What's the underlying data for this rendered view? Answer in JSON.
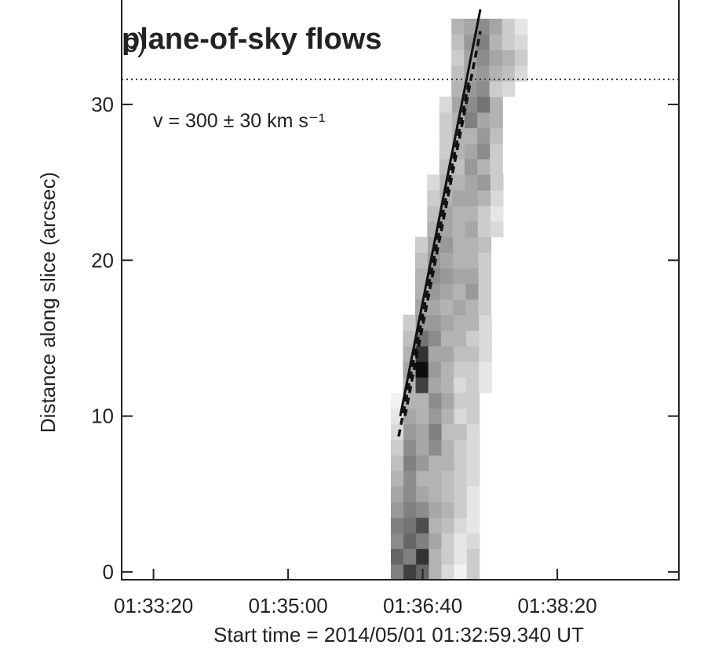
{
  "chart_data": {
    "type": "heatmap",
    "title": "plane-of-sky flows",
    "title_color": "#cc2200",
    "panel_label": "c)",
    "annotation": "v = 300 ± 30 km s⁻¹",
    "y_label": "Distance along slice (arcsec)",
    "x_label": "Start time = 2014/05/01 01:32:59.340 UT",
    "xlim": [
      -3,
      411
    ],
    "ylim": [
      -0.5,
      36.7
    ],
    "xticks": [
      {
        "value": 20.66,
        "label": "01:33:20"
      },
      {
        "value": 120.66,
        "label": "01:35:00"
      },
      {
        "value": 220.66,
        "label": "01:36:40"
      },
      {
        "value": 320.66,
        "label": "01:38:20"
      }
    ],
    "yticks": [
      0,
      10,
      20,
      30
    ],
    "cell_width": 9.4,
    "cell_height": 1,
    "rows": [
      {
        "y": 0,
        "x0": 197,
        "values": [
          0.5,
          0.75,
          0.6,
          0.3,
          0.15,
          0.05,
          0.2
        ]
      },
      {
        "y": 1,
        "x0": 197,
        "values": [
          0.6,
          0.5,
          0.8,
          0.3,
          0.2,
          0.1,
          0.2
        ]
      },
      {
        "y": 2,
        "x0": 197,
        "values": [
          0.45,
          0.6,
          0.5,
          0.35,
          0.2,
          0.1,
          0.15
        ]
      },
      {
        "y": 3,
        "x0": 197,
        "values": [
          0.5,
          0.55,
          0.7,
          0.3,
          0.25,
          0.15,
          0.1
        ]
      },
      {
        "y": 4,
        "x0": 197,
        "values": [
          0.4,
          0.5,
          0.45,
          0.35,
          0.3,
          0.2,
          0.1
        ]
      },
      {
        "y": 5,
        "x0": 197,
        "values": [
          0.35,
          0.45,
          0.35,
          0.3,
          0.25,
          0.2,
          0.1
        ]
      },
      {
        "y": 6,
        "x0": 197,
        "values": [
          0.3,
          0.45,
          0.3,
          0.3,
          0.25,
          0.2,
          0.15
        ]
      },
      {
        "y": 7,
        "x0": 197,
        "values": [
          0.25,
          0.5,
          0.4,
          0.3,
          0.3,
          0.2,
          0.15
        ]
      },
      {
        "y": 8,
        "x0": 197,
        "values": [
          0.2,
          0.45,
          0.35,
          0.45,
          0.3,
          0.2,
          0.15
        ]
      },
      {
        "y": 9,
        "x0": 197,
        "values": [
          0.15,
          0.4,
          0.35,
          0.5,
          0.25,
          0.25,
          0.15
        ]
      },
      {
        "y": 10,
        "x0": 197,
        "values": [
          0.1,
          0.35,
          0.3,
          0.4,
          0.3,
          0.15,
          0.2
        ]
      },
      {
        "y": 11,
        "x0": 197,
        "values": [
          0.05,
          0.3,
          0.3,
          0.45,
          0.35,
          0.2,
          0.2
        ]
      },
      {
        "y": 12,
        "x0": 206,
        "values": [
          0.3,
          0.75,
          0.35,
          0.3,
          0.15,
          0.2,
          0.1
        ]
      },
      {
        "y": 13,
        "x0": 206,
        "values": [
          0.35,
          0.95,
          0.4,
          0.3,
          0.2,
          0.2,
          0.1
        ]
      },
      {
        "y": 14,
        "x0": 206,
        "values": [
          0.3,
          0.8,
          0.35,
          0.35,
          0.25,
          0.25,
          0.15
        ]
      },
      {
        "y": 15,
        "x0": 206,
        "values": [
          0.25,
          0.55,
          0.45,
          0.3,
          0.3,
          0.2,
          0.15
        ]
      },
      {
        "y": 16,
        "x0": 206,
        "values": [
          0.2,
          0.4,
          0.4,
          0.35,
          0.3,
          0.3,
          0.15
        ]
      },
      {
        "y": 17,
        "x0": 215,
        "values": [
          0.35,
          0.35,
          0.3,
          0.35,
          0.3,
          0.2
        ]
      },
      {
        "y": 18,
        "x0": 215,
        "values": [
          0.3,
          0.4,
          0.35,
          0.3,
          0.4,
          0.2
        ]
      },
      {
        "y": 19,
        "x0": 215,
        "values": [
          0.3,
          0.45,
          0.4,
          0.35,
          0.35,
          0.2
        ]
      },
      {
        "y": 20,
        "x0": 215,
        "values": [
          0.25,
          0.4,
          0.35,
          0.3,
          0.3,
          0.2
        ]
      },
      {
        "y": 21,
        "x0": 215,
        "values": [
          0.2,
          0.35,
          0.4,
          0.3,
          0.3,
          0.25
        ]
      },
      {
        "y": 22,
        "x0": 224,
        "values": [
          0.3,
          0.35,
          0.3,
          0.35,
          0.2,
          0.15
        ]
      },
      {
        "y": 23,
        "x0": 224,
        "values": [
          0.25,
          0.35,
          0.3,
          0.3,
          0.2,
          0.1
        ]
      },
      {
        "y": 24,
        "x0": 224,
        "values": [
          0.2,
          0.3,
          0.35,
          0.35,
          0.3,
          0.15
        ]
      },
      {
        "y": 25,
        "x0": 224,
        "values": [
          0.15,
          0.3,
          0.3,
          0.35,
          0.4,
          0.2
        ]
      },
      {
        "y": 26,
        "x0": 233,
        "values": [
          0.25,
          0.25,
          0.4,
          0.3,
          0.2
        ]
      },
      {
        "y": 27,
        "x0": 233,
        "values": [
          0.2,
          0.3,
          0.35,
          0.45,
          0.2
        ]
      },
      {
        "y": 28,
        "x0": 233,
        "values": [
          0.2,
          0.3,
          0.3,
          0.4,
          0.25
        ]
      },
      {
        "y": 29,
        "x0": 233,
        "values": [
          0.2,
          0.3,
          0.5,
          0.35,
          0.3
        ]
      },
      {
        "y": 30,
        "x0": 233,
        "values": [
          0.15,
          0.35,
          0.45,
          0.55,
          0.3
        ]
      },
      {
        "y": 31,
        "x0": 242,
        "values": [
          0.3,
          0.4,
          0.45,
          0.2,
          0.15
        ]
      },
      {
        "y": 32,
        "x0": 242,
        "values": [
          0.25,
          0.35,
          0.4,
          0.3,
          0.25,
          0.15
        ]
      },
      {
        "y": 33,
        "x0": 242,
        "values": [
          0.2,
          0.35,
          0.45,
          0.35,
          0.3,
          0.2
        ]
      },
      {
        "y": 34,
        "x0": 242,
        "values": [
          0.25,
          0.4,
          0.5,
          0.3,
          0.2,
          0.15
        ]
      },
      {
        "y": 35,
        "x0": 242,
        "values": [
          0.3,
          0.35,
          0.45,
          0.35,
          0.2,
          0.1
        ]
      }
    ],
    "lines": [
      {
        "style": "solid",
        "x": [
          204.0,
          263.5
        ],
        "y": [
          10,
          36.1
        ]
      },
      {
        "style": "dashed",
        "x": [
          202.8,
          255.3
        ],
        "y": [
          8.7,
          31.6
        ]
      },
      {
        "style": "dashed",
        "x": [
          207.5,
          263.5
        ],
        "y": [
          10.0,
          34.7
        ]
      }
    ],
    "hline": 31.6,
    "hline_style": "dotted"
  }
}
